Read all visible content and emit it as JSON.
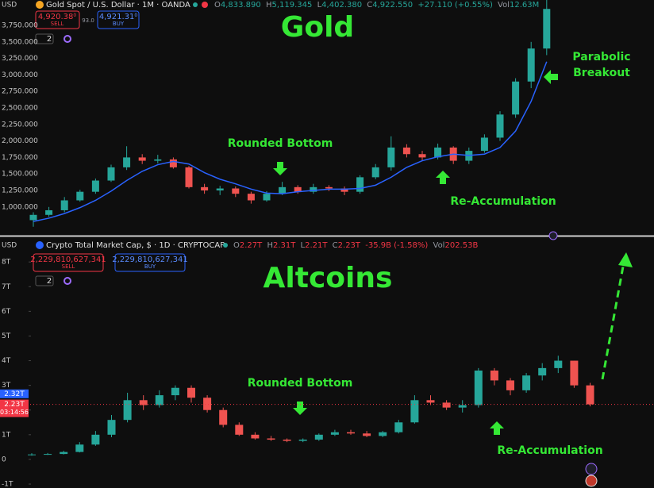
{
  "chart_data": [
    {
      "type": "candlestick",
      "title": "Gold",
      "axis_currency": "USD",
      "symbol": "Gold Spot / U.S. Dollar · 1M · OANDA",
      "ohlc": [
        {
          "label": "O",
          "value": "4,833.890"
        },
        {
          "label": "H",
          "value": "5,119.345"
        },
        {
          "label": "L",
          "value": "4,402.380"
        },
        {
          "label": "C",
          "value": "4,922.550"
        }
      ],
      "change": "+27.110 (+0.55%)",
      "volume_label": "Vol",
      "volume": "12.63M",
      "sell": {
        "price": "4,920.38",
        "pip": "0",
        "label": "SELL"
      },
      "spread": "93.0",
      "buy": {
        "price": "4,921.31",
        "pip": "0",
        "label": "BUY"
      },
      "interval_count": "2",
      "annotations": [
        "Rounded Bottom",
        "Parabolic",
        "Breakout",
        "Re-Accumulation"
      ],
      "up_color": "#26a69a",
      "down_color": "#ef5350",
      "open": [
        800,
        880,
        950,
        1100,
        1230,
        1400,
        1600,
        1750,
        1700,
        1720,
        1600,
        1300,
        1250,
        1280,
        1200,
        1100,
        1200,
        1300,
        1230,
        1300,
        1280,
        1230,
        1450,
        1600,
        1900,
        1800,
        1750,
        1900,
        1700,
        1850,
        2050,
        2400,
        2900,
        3400
      ],
      "high": [
        920,
        1000,
        1150,
        1260,
        1430,
        1640,
        1920,
        1800,
        1790,
        1750,
        1620,
        1350,
        1320,
        1310,
        1230,
        1240,
        1380,
        1330,
        1350,
        1330,
        1310,
        1480,
        1650,
        2070,
        1950,
        1850,
        1960,
        1920,
        1900,
        2100,
        2450,
        2950,
        3500,
        4380
      ],
      "low": [
        700,
        850,
        920,
        1080,
        1200,
        1380,
        1560,
        1650,
        1660,
        1580,
        1280,
        1200,
        1180,
        1150,
        1050,
        1080,
        1180,
        1200,
        1200,
        1240,
        1180,
        1200,
        1420,
        1550,
        1750,
        1700,
        1720,
        1650,
        1650,
        1820,
        2000,
        2350,
        2800,
        3300
      ],
      "close": [
        880,
        950,
        1100,
        1230,
        1400,
        1600,
        1750,
        1700,
        1720,
        1600,
        1300,
        1250,
        1280,
        1200,
        1100,
        1200,
        1300,
        1230,
        1300,
        1280,
        1230,
        1450,
        1600,
        1900,
        1800,
        1750,
        1900,
        1700,
        1850,
        2050,
        2400,
        2900,
        3400,
        4000
      ],
      "ma": {
        "color": "#2962ff",
        "values": [
          780,
          830,
          900,
          990,
          1100,
          1240,
          1400,
          1540,
          1640,
          1690,
          1650,
          1520,
          1420,
          1350,
          1270,
          1210,
          1200,
          1230,
          1250,
          1270,
          1270,
          1280,
          1330,
          1450,
          1600,
          1700,
          1760,
          1800,
          1780,
          1800,
          1900,
          2150,
          2600,
          3200
        ]
      },
      "ylim": [
        625,
        4135
      ],
      "yticks": [
        {
          "value": 1000,
          "label": "1,000.000"
        },
        {
          "value": 1250,
          "label": "1,250.000"
        },
        {
          "value": 1500,
          "label": "1,500.000"
        },
        {
          "value": 1750,
          "label": "1,750.000"
        },
        {
          "value": 2000,
          "label": "2,000.000"
        },
        {
          "value": 2250,
          "label": "2,250.000"
        },
        {
          "value": 2500,
          "label": "2,500.000"
        },
        {
          "value": 2750,
          "label": "2,750.000"
        },
        {
          "value": 3000,
          "label": "3,000.000"
        },
        {
          "value": 3250,
          "label": "3,250.000"
        },
        {
          "value": 3500,
          "label": "3,500.000"
        },
        {
          "value": 3750,
          "label": "3,750.000"
        }
      ]
    },
    {
      "type": "candlestick",
      "title": "Altcoins",
      "axis_currency": "USD",
      "symbol": "Crypto Total Market Cap, $ · 1D · CRYPTOCAP",
      "ohlc": [
        {
          "label": "O",
          "value": "2.27T"
        },
        {
          "label": "H",
          "value": "2.31T"
        },
        {
          "label": "L",
          "value": "2.21T"
        },
        {
          "label": "C",
          "value": "2.23T"
        }
      ],
      "change": "-35.9B (-1.58%)",
      "volume_label": "Vol",
      "volume": "202.53B",
      "sell": {
        "price": "2,229,810,627,341",
        "label": "SELL"
      },
      "buy": {
        "price": "2,229,810,627,341",
        "label": "BUY"
      },
      "interval_count": "2",
      "annotations": [
        "Rounded Bottom",
        "Re-Accumulation"
      ],
      "up_color": "#26a69a",
      "down_color": "#ef5350",
      "open": [
        0.18,
        0.2,
        0.22,
        0.3,
        0.6,
        1.0,
        1.6,
        2.4,
        2.2,
        2.6,
        2.9,
        2.5,
        2.0,
        1.4,
        1.0,
        0.85,
        0.8,
        0.75,
        0.8,
        1.0,
        1.1,
        1.05,
        0.95,
        1.1,
        1.5,
        2.4,
        2.3,
        2.1,
        2.2,
        3.6,
        3.2,
        2.8,
        3.4,
        3.7,
        4.0,
        3.0
      ],
      "high": [
        0.25,
        0.26,
        0.35,
        0.7,
        1.15,
        1.8,
        2.7,
        2.6,
        2.8,
        3.0,
        3.0,
        2.6,
        2.1,
        1.5,
        1.1,
        0.95,
        0.85,
        0.85,
        1.05,
        1.2,
        1.2,
        1.15,
        1.15,
        1.6,
        2.6,
        2.6,
        2.4,
        2.4,
        3.7,
        3.7,
        3.3,
        3.5,
        3.9,
        4.2,
        4.0,
        3.1
      ],
      "low": [
        0.15,
        0.18,
        0.2,
        0.28,
        0.55,
        0.9,
        1.5,
        2.0,
        2.1,
        2.4,
        2.3,
        1.9,
        1.3,
        0.95,
        0.8,
        0.75,
        0.7,
        0.7,
        0.75,
        0.95,
        1.0,
        0.9,
        0.9,
        1.05,
        1.45,
        2.2,
        2.0,
        1.9,
        2.1,
        3.0,
        2.6,
        2.7,
        3.2,
        3.5,
        2.9,
        2.15
      ],
      "close": [
        0.2,
        0.22,
        0.3,
        0.6,
        1.0,
        1.6,
        2.4,
        2.2,
        2.6,
        2.9,
        2.5,
        2.0,
        1.4,
        1.0,
        0.85,
        0.8,
        0.75,
        0.8,
        1.0,
        1.1,
        1.05,
        0.95,
        1.1,
        1.5,
        2.4,
        2.3,
        2.1,
        2.2,
        3.6,
        3.2,
        2.8,
        3.4,
        3.7,
        4.0,
        3.0,
        2.23
      ],
      "price_markers": [
        {
          "value": 2.32,
          "label": "2.32T",
          "color": "#2962ff"
        },
        {
          "value": 2.23,
          "label": "2.23T",
          "countdown": "03:14:56",
          "color": "#f23645"
        }
      ],
      "ylim": [
        -1.16,
        8.97
      ],
      "yticks": [
        {
          "value": -1,
          "label": "-1T"
        },
        0,
        {
          "value": 1,
          "label": "1T"
        },
        {
          "value": 2,
          "label": "2T"
        },
        {
          "value": 3,
          "label": "3T"
        },
        {
          "value": 4,
          "label": "4T"
        },
        {
          "value": 5,
          "label": "5T"
        },
        {
          "value": 6,
          "label": "6T"
        },
        {
          "value": 7,
          "label": "7T"
        },
        {
          "value": 8,
          "label": "8T"
        }
      ]
    }
  ]
}
